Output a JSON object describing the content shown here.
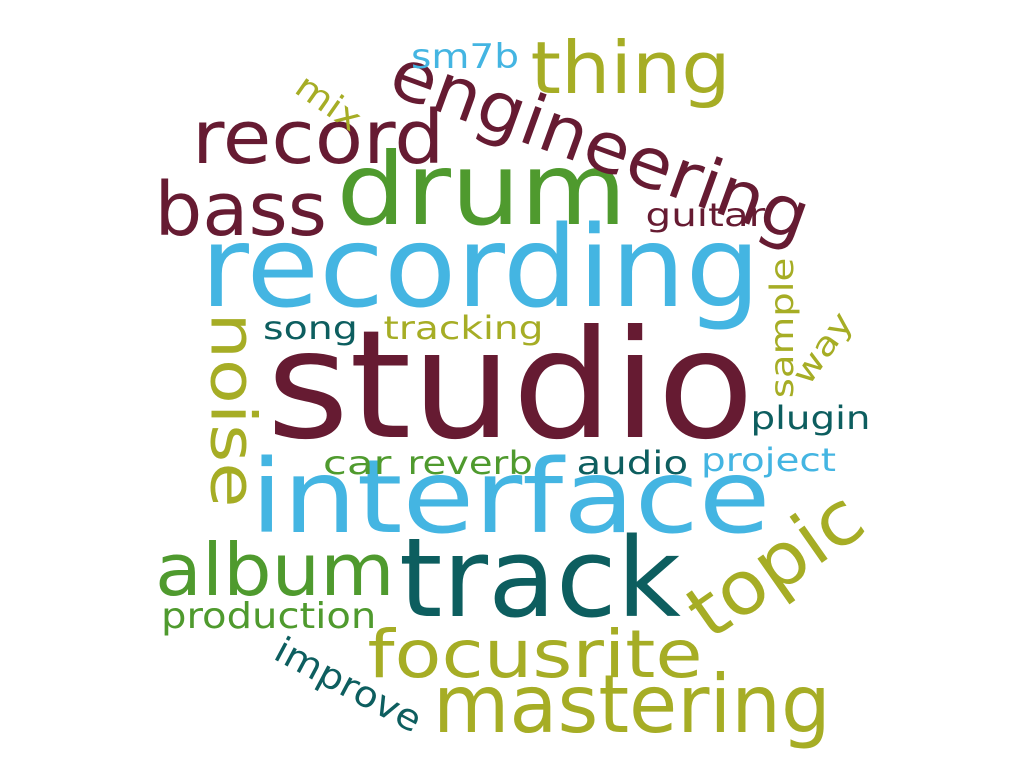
{
  "palette": {
    "maroon": "#661b32",
    "green": "#4f9a2e",
    "sky": "#44b5e2",
    "olive": "#a6ad25",
    "teal": "#0d5e5f"
  },
  "words": [
    {
      "id": "studio",
      "text": "studio",
      "color": "#661b32",
      "rotation": 0
    },
    {
      "id": "recording",
      "text": "recording",
      "color": "#44b5e2",
      "rotation": 0
    },
    {
      "id": "interface",
      "text": "interface",
      "color": "#44b5e2",
      "rotation": 0
    },
    {
      "id": "track",
      "text": "track",
      "color": "#0d5e5f",
      "rotation": 0
    },
    {
      "id": "drum",
      "text": "drum",
      "color": "#4f9a2e",
      "rotation": 0
    },
    {
      "id": "engineering",
      "text": "engineering",
      "color": "#661b32",
      "rotation": 20
    },
    {
      "id": "mastering",
      "text": "mastering",
      "color": "#a6ad25",
      "rotation": 0
    },
    {
      "id": "topic",
      "text": "topic",
      "color": "#a6ad25",
      "rotation": -35
    },
    {
      "id": "focusrite",
      "text": "focusrite",
      "color": "#a6ad25",
      "rotation": 0
    },
    {
      "id": "bass",
      "text": "bass",
      "color": "#661b32",
      "rotation": 0
    },
    {
      "id": "record",
      "text": "record",
      "color": "#661b32",
      "rotation": 0
    },
    {
      "id": "album",
      "text": "album",
      "color": "#4f9a2e",
      "rotation": 0
    },
    {
      "id": "noise",
      "text": "noise",
      "color": "#a6ad25",
      "rotation": 90
    },
    {
      "id": "thing",
      "text": "thing",
      "color": "#a6ad25",
      "rotation": 0
    },
    {
      "id": "production",
      "text": "production",
      "color": "#4f9a2e",
      "rotation": 0
    },
    {
      "id": "improve",
      "text": "improve",
      "color": "#0d5e5f",
      "rotation": 28
    },
    {
      "id": "project",
      "text": "project",
      "color": "#44b5e2",
      "rotation": 0
    },
    {
      "id": "plugin",
      "text": "plugin",
      "color": "#0d5e5f",
      "rotation": 0
    },
    {
      "id": "audio",
      "text": "audio",
      "color": "#0d5e5f",
      "rotation": 0
    },
    {
      "id": "reverb",
      "text": "reverb",
      "color": "#4f9a2e",
      "rotation": 0
    },
    {
      "id": "car",
      "text": "car",
      "color": "#4f9a2e",
      "rotation": 0
    },
    {
      "id": "sample",
      "text": "sample",
      "color": "#a6ad25",
      "rotation": -90
    },
    {
      "id": "way",
      "text": "way",
      "color": "#a6ad25",
      "rotation": -55
    },
    {
      "id": "tracking",
      "text": "tracking",
      "color": "#a6ad25",
      "rotation": 0
    },
    {
      "id": "song",
      "text": "song",
      "color": "#0d5e5f",
      "rotation": 0
    },
    {
      "id": "guitar",
      "text": "guitar",
      "color": "#661b32",
      "rotation": 0
    },
    {
      "id": "mix",
      "text": "mix",
      "color": "#a6ad25",
      "rotation": 35
    },
    {
      "id": "sm7b",
      "text": "sm7b",
      "color": "#44b5e2",
      "rotation": 0
    }
  ]
}
